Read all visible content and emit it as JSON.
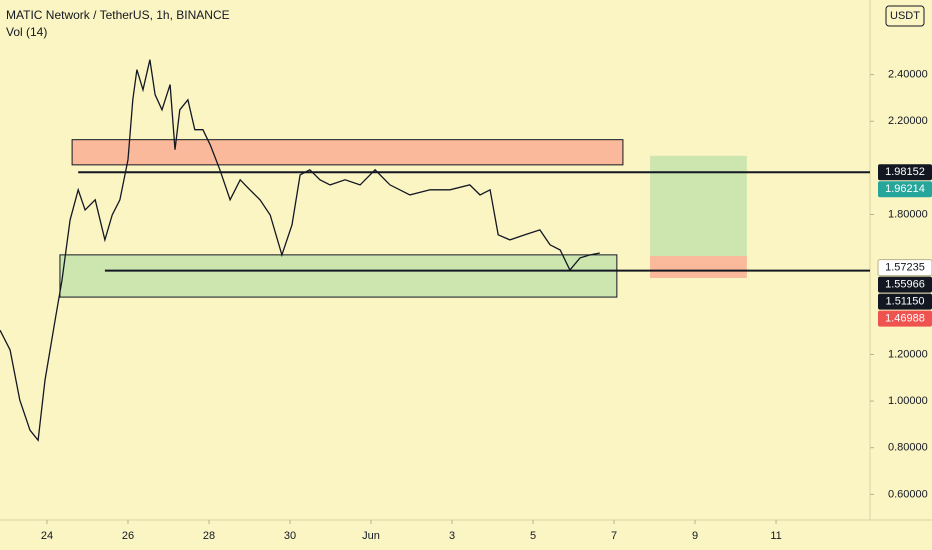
{
  "chart_data": {
    "type": "line",
    "title": "MATIC Network / TetherUS, 1h, BINANCE",
    "subtitle": "Vol (14)",
    "currency": "USDT",
    "color": "#131722",
    "x": [
      22.84,
      23.09,
      23.33,
      23.58,
      23.78,
      23.95,
      24.2,
      24.37,
      24.57,
      24.77,
      24.94,
      25.19,
      25.43,
      25.61,
      25.8,
      26.0,
      26.12,
      26.22,
      26.37,
      26.54,
      26.67,
      26.84,
      27.04,
      27.16,
      27.28,
      27.48,
      27.65,
      27.85,
      28.03,
      28.27,
      28.52,
      28.77,
      29.01,
      29.26,
      29.51,
      29.8,
      30.05,
      30.25,
      30.49,
      30.74,
      30.99,
      31.36,
      31.73,
      32.1,
      32.47,
      32.96,
      33.46,
      33.95,
      34.44,
      34.69,
      34.94,
      35.14,
      35.43,
      35.8,
      36.17,
      36.42,
      36.67,
      36.91,
      37.16,
      37.41,
      37.65
    ],
    "values": [
      1.304,
      1.219,
      1.004,
      0.875,
      0.832,
      1.09,
      1.347,
      1.519,
      1.777,
      1.906,
      1.82,
      1.863,
      1.691,
      1.798,
      1.863,
      2.035,
      2.292,
      2.421,
      2.335,
      2.464,
      2.314,
      2.249,
      2.357,
      2.078,
      2.249,
      2.292,
      2.164,
      2.164,
      2.099,
      1.992,
      1.863,
      1.949,
      1.906,
      1.863,
      1.798,
      1.627,
      1.756,
      1.97,
      1.992,
      1.949,
      1.927,
      1.949,
      1.927,
      1.992,
      1.927,
      1.884,
      1.906,
      1.906,
      1.927,
      1.884,
      1.906,
      1.713,
      1.691,
      1.713,
      1.734,
      1.67,
      1.648,
      1.562,
      1.614,
      1.627,
      1.635
    ],
    "xlim": [
      22.84,
      44.32
    ],
    "ylim": [
      0.49,
      2.72
    ],
    "xticks": [
      24,
      26,
      28,
      30,
      {
        "value": 32,
        "label": "Jun"
      },
      {
        "value": 34,
        "label": "3"
      },
      {
        "value": 36,
        "label": "5"
      },
      {
        "value": 38,
        "label": "7"
      },
      {
        "value": 40,
        "label": "9"
      },
      {
        "value": 42,
        "label": "11"
      }
    ],
    "yticks": [
      {
        "value": 0.6,
        "label": "0.60000"
      },
      {
        "value": 0.8,
        "label": "0.80000"
      },
      {
        "value": 1.0,
        "label": "1.00000"
      },
      {
        "value": 1.2,
        "label": "1.20000"
      },
      {
        "value": 1.8,
        "label": "1.80000"
      },
      {
        "value": 2.2,
        "label": "2.20000"
      },
      {
        "value": 2.4,
        "label": "2.40000"
      }
    ],
    "zones": [
      {
        "x": [
          24.62,
          38.22
        ],
        "y": [
          2.013,
          2.121
        ],
        "color": "#f9b99a"
      },
      {
        "x": [
          24.32,
          38.07
        ],
        "y": [
          1.446,
          1.627
        ],
        "color": "#cde6b0"
      },
      {
        "x": [
          38.89,
          41.28
        ],
        "y": [
          1.622,
          2.052
        ],
        "color": "#cde6b0"
      },
      {
        "x": [
          38.89,
          41.28
        ],
        "y": [
          1.528,
          1.622
        ],
        "color": "#f9b99a"
      }
    ],
    "lines": [
      {
        "x": [
          24.77,
          44.32
        ],
        "y": 1.98152
      },
      {
        "x": [
          25.43,
          44.32
        ],
        "y": 1.55966
      }
    ],
    "price_labels": [
      {
        "value": 1.98152,
        "label": "1.98152",
        "color": "#131722"
      },
      {
        "value": 1.96214,
        "label": "1.96214",
        "color": "#26a69a"
      },
      {
        "value": 1.57235,
        "label": "1.57235",
        "color": "#ffffff"
      },
      {
        "value": 1.55966,
        "label": "1.55966",
        "color": "#131722"
      },
      {
        "value": 1.5115,
        "label": "1.51150",
        "color": "#131722"
      },
      {
        "value": 1.46988,
        "label": "1.46988",
        "color": "#ef5350"
      }
    ]
  }
}
